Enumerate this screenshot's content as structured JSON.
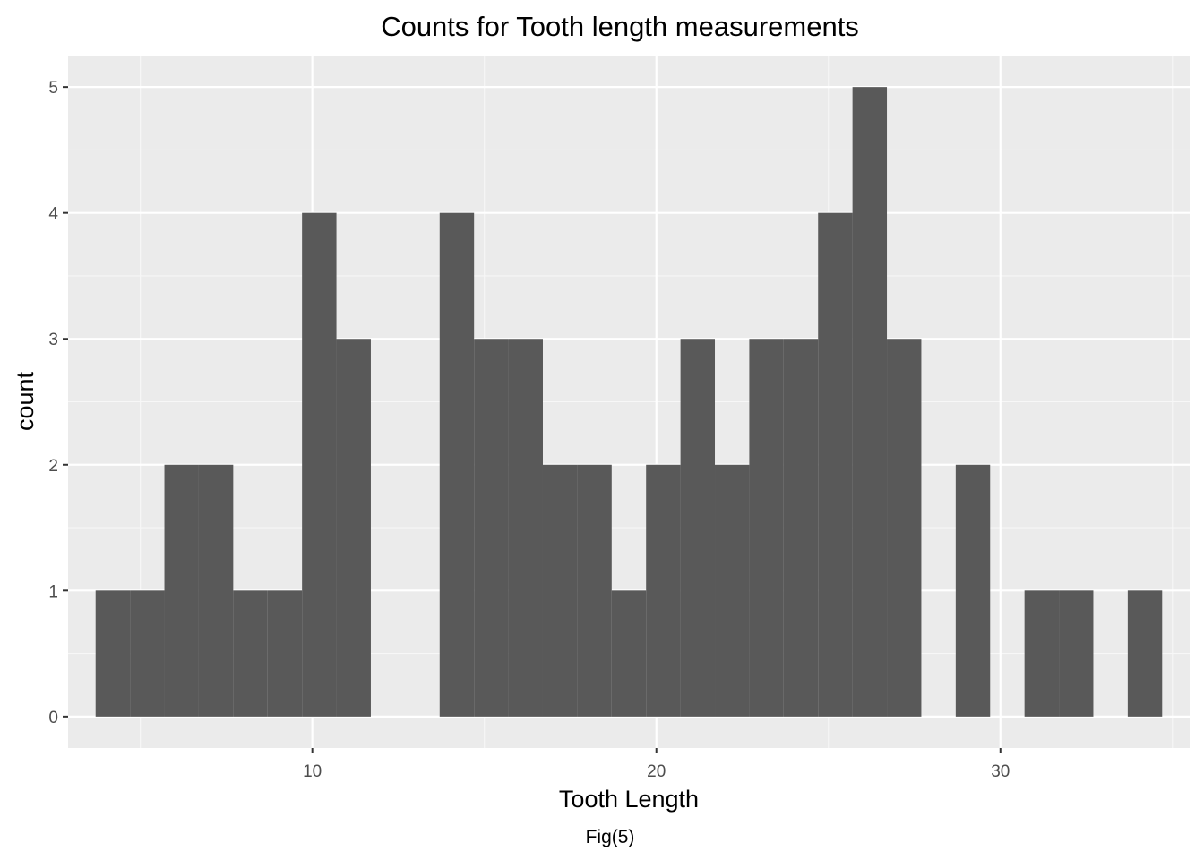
{
  "chart_data": {
    "type": "bar",
    "subtype": "histogram",
    "title": "Counts for Tooth length measurements",
    "xlabel": "Tooth Length",
    "ylabel": "count",
    "caption": "Fig(5)",
    "bin_width": 1,
    "xlim": [
      2.9,
      35.5
    ],
    "ylim": [
      -0.25,
      5.25
    ],
    "x_ticks": [
      10,
      20,
      30
    ],
    "x_minor_ticks": [
      5,
      15,
      25,
      35
    ],
    "y_ticks": [
      0,
      1,
      2,
      3,
      4,
      5
    ],
    "y_minor_ticks": [
      0.5,
      1.5,
      2.5,
      3.5,
      4.5
    ],
    "bins": [
      {
        "x": 4.2,
        "count": 1
      },
      {
        "x": 5.2,
        "count": 1
      },
      {
        "x": 6.2,
        "count": 2
      },
      {
        "x": 7.2,
        "count": 2
      },
      {
        "x": 8.2,
        "count": 1
      },
      {
        "x": 9.2,
        "count": 1
      },
      {
        "x": 10.2,
        "count": 4
      },
      {
        "x": 11.2,
        "count": 3
      },
      {
        "x": 12.2,
        "count": 0
      },
      {
        "x": 13.2,
        "count": 0
      },
      {
        "x": 14.2,
        "count": 4
      },
      {
        "x": 15.2,
        "count": 3
      },
      {
        "x": 16.2,
        "count": 3
      },
      {
        "x": 17.2,
        "count": 2
      },
      {
        "x": 18.2,
        "count": 2
      },
      {
        "x": 19.2,
        "count": 1
      },
      {
        "x": 20.2,
        "count": 2
      },
      {
        "x": 21.2,
        "count": 3
      },
      {
        "x": 22.2,
        "count": 2
      },
      {
        "x": 23.2,
        "count": 3
      },
      {
        "x": 24.2,
        "count": 3
      },
      {
        "x": 25.2,
        "count": 4
      },
      {
        "x": 26.2,
        "count": 5
      },
      {
        "x": 27.2,
        "count": 3
      },
      {
        "x": 28.2,
        "count": 0
      },
      {
        "x": 29.2,
        "count": 2
      },
      {
        "x": 30.2,
        "count": 0
      },
      {
        "x": 31.2,
        "count": 1
      },
      {
        "x": 32.2,
        "count": 1
      },
      {
        "x": 33.2,
        "count": 0
      },
      {
        "x": 34.2,
        "count": 1
      }
    ],
    "grid": true,
    "legend": "none",
    "colors": {
      "panel_background": "#ebebeb",
      "grid_major": "#ffffff",
      "grid_minor": "#f7f7f7",
      "bar_fill": "#595959",
      "tick_text": "#4d4d4d",
      "tick_mark": "#333333"
    }
  }
}
